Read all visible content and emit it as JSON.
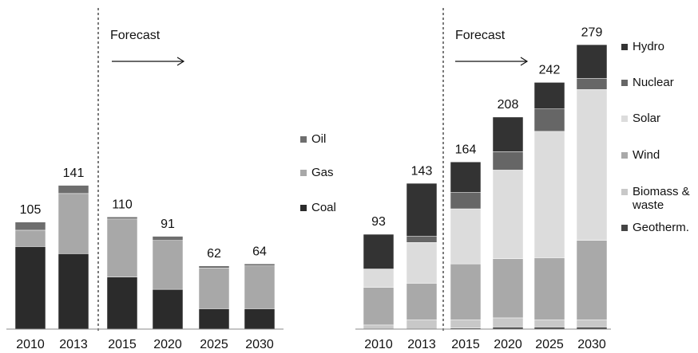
{
  "chart_data": [
    {
      "type": "bar",
      "stacked": true,
      "annotation": "Forecast",
      "categories": [
        "2010",
        "2013",
        "2015",
        "2020",
        "2025",
        "2030"
      ],
      "totals": [
        105,
        141,
        110,
        91,
        62,
        64
      ],
      "ylim": [
        0,
        290
      ],
      "series": [
        {
          "name": "Coal",
          "color": "#2b2b2b",
          "values": [
            81,
            74,
            51,
            39,
            20,
            20
          ]
        },
        {
          "name": "Gas",
          "color": "#a8a8a8",
          "values": [
            16,
            59,
            57,
            48,
            40,
            42
          ]
        },
        {
          "name": "Oil",
          "color": "#6e6e6e",
          "values": [
            8,
            8,
            2,
            4,
            2,
            2
          ]
        }
      ]
    },
    {
      "type": "bar",
      "stacked": true,
      "annotation": "Forecast",
      "categories": [
        "2010",
        "2013",
        "2015",
        "2020",
        "2025",
        "2030"
      ],
      "totals": [
        93,
        143,
        164,
        208,
        242,
        279
      ],
      "ylim": [
        0,
        290
      ],
      "series": [
        {
          "name": "Geotherm.",
          "color": "#444444",
          "values": [
            0,
            0,
            1,
            2,
            2,
            2
          ]
        },
        {
          "name": "Biomass & waste",
          "color": "#c8c8c8",
          "values": [
            4,
            9,
            8,
            9,
            7,
            7
          ]
        },
        {
          "name": "Wind",
          "color": "#a9a9a9",
          "values": [
            37,
            36,
            55,
            58,
            61,
            78
          ]
        },
        {
          "name": "Solar",
          "color": "#dcdcdc",
          "values": [
            18,
            40,
            54,
            87,
            124,
            148
          ]
        },
        {
          "name": "Nuclear",
          "color": "#666666",
          "values": [
            0,
            6,
            16,
            18,
            22,
            11
          ]
        },
        {
          "name": "Hydro",
          "color": "#333333",
          "values": [
            34,
            52,
            30,
            34,
            26,
            33
          ]
        }
      ]
    }
  ]
}
